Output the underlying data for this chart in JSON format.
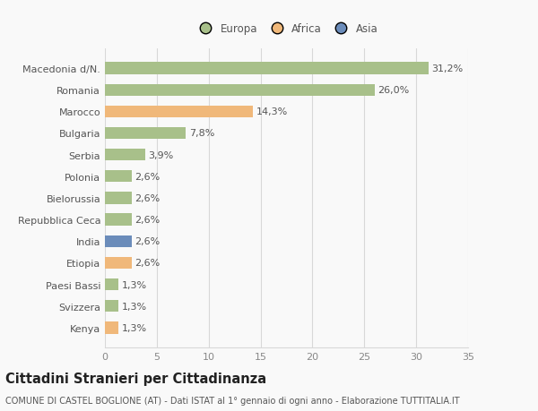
{
  "categories": [
    "Macedonia d/N.",
    "Romania",
    "Marocco",
    "Bulgaria",
    "Serbia",
    "Polonia",
    "Bielorussia",
    "Repubblica Ceca",
    "India",
    "Etiopia",
    "Paesi Bassi",
    "Svizzera",
    "Kenya"
  ],
  "values": [
    31.2,
    26.0,
    14.3,
    7.8,
    3.9,
    2.6,
    2.6,
    2.6,
    2.6,
    2.6,
    1.3,
    1.3,
    1.3
  ],
  "labels": [
    "31,2%",
    "26,0%",
    "14,3%",
    "7,8%",
    "3,9%",
    "2,6%",
    "2,6%",
    "2,6%",
    "2,6%",
    "2,6%",
    "1,3%",
    "1,3%",
    "1,3%"
  ],
  "colors": [
    "#a8c08a",
    "#a8c08a",
    "#f0b87a",
    "#a8c08a",
    "#a8c08a",
    "#a8c08a",
    "#a8c08a",
    "#a8c08a",
    "#6b8cba",
    "#f0b87a",
    "#a8c08a",
    "#a8c08a",
    "#f0b87a"
  ],
  "legend_names": [
    "Europa",
    "Africa",
    "Asia"
  ],
  "legend_colors": [
    "#a8c08a",
    "#f0b87a",
    "#6b8cba"
  ],
  "xlim": [
    0,
    35
  ],
  "xticks": [
    0,
    5,
    10,
    15,
    20,
    25,
    30,
    35
  ],
  "title": "Cittadini Stranieri per Cittadinanza",
  "subtitle": "COMUNE DI CASTEL BOGLIONE (AT) - Dati ISTAT al 1° gennaio di ogni anno - Elaborazione TUTTITALIA.IT",
  "bg_color": "#f9f9f9",
  "grid_color": "#d8d8d8",
  "bar_height": 0.55,
  "label_fontsize": 8,
  "title_fontsize": 10.5,
  "subtitle_fontsize": 7,
  "tick_fontsize": 8,
  "legend_fontsize": 8.5
}
